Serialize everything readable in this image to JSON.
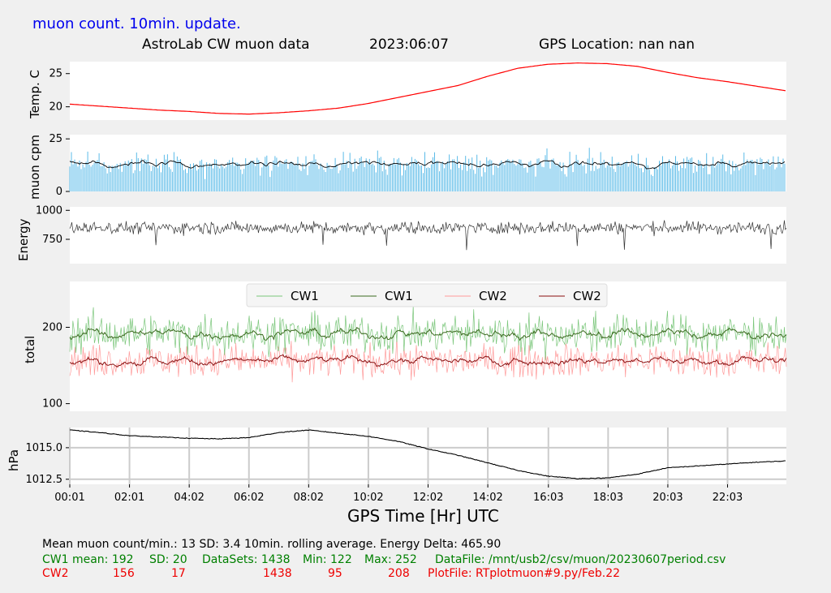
{
  "header": {
    "update_note": "muon count.  10min. update.",
    "title": "AstroLab CW muon data",
    "date": "2023:06:07",
    "gps_location": "GPS Location: nan   nan"
  },
  "footer": {
    "line1": "Mean muon count/min.: 13  SD: 3.4   10min. rolling average.    Energy Delta:  465.90",
    "cw1": {
      "label": "CW1 mean: 192",
      "sd": "SD: 20",
      "datasets": "DataSets: 1438",
      "min": "Min: 122",
      "max": "Max: 252",
      "file": "DataFile: /mnt/usb2/csv/muon/20230607period.csv"
    },
    "cw2": {
      "label": "CW2",
      "mean": "156",
      "sd": "17",
      "datasets": "1438",
      "min": "95",
      "max": "208",
      "file": "PlotFile: RTplotmuon#9.py/Feb.22"
    }
  },
  "colors": {
    "temp": "#ff0000",
    "muon_bar": "#5bbbe8",
    "black": "#000000",
    "cw1_raw": "#7ac67a",
    "cw1_avg": "#3a6a1e",
    "cw2_raw": "#ff9a9a",
    "cw2_avg": "#8b1010"
  },
  "chart_data": [
    {
      "type": "line",
      "ylabel": "Temp. C",
      "yticks": [
        20,
        25
      ],
      "ylim": [
        18,
        26.8
      ],
      "x_hours": [
        0,
        1,
        2,
        3,
        4,
        5,
        6,
        7,
        8,
        9,
        10,
        11,
        12,
        13,
        14,
        15,
        16,
        17,
        18,
        19,
        20,
        21,
        22,
        23,
        24
      ],
      "series": [
        {
          "color": "temp",
          "values": [
            20.4,
            20.1,
            19.8,
            19.5,
            19.3,
            19.0,
            18.9,
            19.1,
            19.4,
            19.8,
            20.5,
            21.4,
            22.3,
            23.2,
            24.6,
            25.8,
            26.4,
            26.6,
            26.5,
            26.1,
            25.2,
            24.4,
            23.8,
            23.1,
            22.4
          ]
        }
      ]
    },
    {
      "type": "bar",
      "ylabel": "muon cpm",
      "yticks": [
        0,
        25
      ],
      "ylim": [
        0,
        27
      ],
      "mean": 13,
      "sd": 3.4,
      "note": "10min. rolling average."
    },
    {
      "type": "line",
      "ylabel": "Energy",
      "yticks": [
        750,
        1000
      ],
      "ylim": [
        540,
        1030
      ],
      "mean": 850,
      "energy_delta": "465.90"
    },
    {
      "type": "line",
      "ylabel": "total",
      "yticks": [
        100,
        200
      ],
      "ylim": [
        90,
        260
      ],
      "legend": [
        "CW1",
        "CW1",
        "CW2",
        "CW2"
      ],
      "legend_placement": "top",
      "series": [
        {
          "name": "CW1",
          "mean": 192,
          "sd": 20,
          "min": 122,
          "max": 252
        },
        {
          "name": "CW2",
          "mean": 156,
          "sd": 17,
          "min": 95,
          "max": 208
        }
      ]
    },
    {
      "type": "line",
      "ylabel": "hPa",
      "yticks": [
        "1012.5",
        "1015.0"
      ],
      "ylim": [
        1012.1,
        1016.6
      ],
      "grid": true,
      "x_hours": [
        0,
        1,
        2,
        3,
        4,
        5,
        6,
        7,
        8,
        9,
        10,
        11,
        12,
        13,
        14,
        15,
        16,
        17,
        18,
        19,
        20,
        21,
        22,
        23,
        24
      ],
      "series": [
        {
          "color": "black",
          "values": [
            1016.4,
            1016.2,
            1015.95,
            1015.85,
            1015.75,
            1015.7,
            1015.8,
            1016.2,
            1016.4,
            1016.15,
            1015.9,
            1015.5,
            1014.9,
            1014.4,
            1013.8,
            1013.2,
            1012.75,
            1012.55,
            1012.6,
            1012.9,
            1013.4,
            1013.55,
            1013.7,
            1013.85,
            1013.95
          ]
        }
      ]
    }
  ],
  "xaxis": {
    "label": "GPS Time  [Hr] UTC",
    "ticks": [
      "00:01",
      "02:01",
      "04:02",
      "06:02",
      "08:02",
      "10:02",
      "12:02",
      "14:02",
      "16:03",
      "18:03",
      "20:03",
      "22:03"
    ],
    "tick_hours": [
      0,
      2,
      4,
      6,
      8,
      10,
      12,
      14,
      16.03,
      18.03,
      20.03,
      22.03
    ]
  }
}
